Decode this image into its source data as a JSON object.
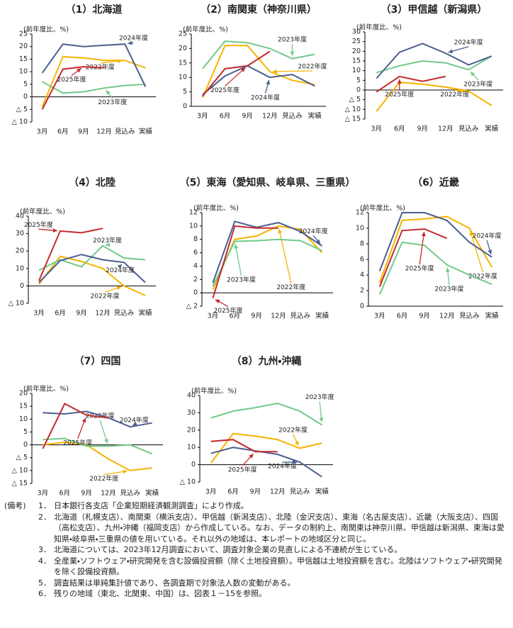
{
  "chart_data": [
    {
      "type": "line",
      "title": "（1）北海道",
      "y_label": "(前年度比、%)",
      "categories": [
        "3月",
        "6月",
        "9月",
        "12月",
        "見込み",
        "実績"
      ],
      "ylim": [
        -10,
        25
      ],
      "yticks": [
        {
          "value": -10,
          "label": "△ 10"
        },
        {
          "value": -5,
          "label": "△ 5"
        },
        0,
        5,
        10,
        15,
        20,
        25
      ],
      "series": [
        {
          "name": "2022年度",
          "color": "#f5b400",
          "values": [
            -4,
            16,
            15.5,
            14.5,
            14.5,
            11.5
          ]
        },
        {
          "name": "2023年度",
          "color": "#72c98a",
          "values": [
            6,
            1.5,
            2,
            3.5,
            4.5,
            5
          ]
        },
        {
          "name": "2024年度",
          "color": "#4b5f8f",
          "values": [
            9.5,
            21,
            20,
            20.5,
            21,
            4
          ]
        },
        {
          "name": "2025年度",
          "color": "#c32a2f",
          "values": [
            -5,
            11,
            12,
            11.5,
            null,
            null
          ]
        }
      ]
    },
    {
      "type": "line",
      "title": "（2）南関東（神奈川県）",
      "y_label": "(前年度比、%)",
      "categories": [
        "3月",
        "6月",
        "9月",
        "12月",
        "見込み",
        "実績"
      ],
      "ylim": [
        0,
        25
      ],
      "yticks": [
        0,
        5,
        10,
        15,
        20,
        25
      ],
      "series": [
        {
          "name": "2022年度",
          "color": "#f5b400",
          "values": [
            3,
            21,
            21,
            12,
            9,
            7.5
          ]
        },
        {
          "name": "2023年度",
          "color": "#72c98a",
          "values": [
            13,
            22.5,
            22,
            20,
            16.5,
            18
          ]
        },
        {
          "name": "2024年度",
          "color": "#4b5f8f",
          "values": [
            4,
            10.5,
            14,
            10,
            11,
            7
          ]
        },
        {
          "name": "2025年度",
          "color": "#c32a2f",
          "values": [
            3.5,
            13,
            14,
            19,
            null,
            null
          ]
        }
      ]
    },
    {
      "type": "line",
      "title": "（3）甲信越（新潟県）",
      "y_label": "(前年度比、%)",
      "categories": [
        "3月",
        "6月",
        "9月",
        "12月",
        "見込み",
        "実績"
      ],
      "ylim": [
        -15,
        30
      ],
      "yticks": [
        {
          "value": -15,
          "label": "△ 15"
        },
        {
          "value": -10,
          "label": "△ 10"
        },
        {
          "value": -5,
          "label": "△ 5"
        },
        0,
        5,
        10,
        15,
        20,
        25,
        30
      ],
      "series": [
        {
          "name": "2022年度",
          "color": "#f5b400",
          "values": [
            -11,
            4,
            3,
            1.5,
            -0.5,
            -8
          ]
        },
        {
          "name": "2023年度",
          "color": "#72c98a",
          "values": [
            9,
            12.5,
            15,
            14,
            10.5,
            17.5
          ]
        },
        {
          "name": "2024年度",
          "color": "#4b5f8f",
          "values": [
            6,
            19.5,
            24,
            19,
            13,
            17.5
          ]
        },
        {
          "name": "2025年度",
          "color": "#c32a2f",
          "values": [
            -1,
            7,
            4.5,
            7,
            null,
            null
          ]
        }
      ]
    },
    {
      "type": "line",
      "title": "（4）北陸",
      "y_label": "(前年度比、%)",
      "categories": [
        "3月",
        "6月",
        "9月",
        "12月",
        "見込み",
        "実績"
      ],
      "ylim": [
        -10,
        40
      ],
      "yticks": [
        {
          "value": -10,
          "label": "△ 10"
        },
        0,
        10,
        20,
        30,
        40
      ],
      "series": [
        {
          "name": "2022年度",
          "color": "#f5b400",
          "values": [
            1,
            17,
            14,
            10,
            0,
            -5.5
          ]
        },
        {
          "name": "2023年度",
          "color": "#72c98a",
          "values": [
            9,
            15,
            11,
            23,
            16,
            15
          ]
        },
        {
          "name": "2024年度",
          "color": "#4b5f8f",
          "values": [
            2,
            14.5,
            18,
            15,
            13.5,
            2
          ]
        },
        {
          "name": "2025年度",
          "color": "#c32a2f",
          "values": [
            3,
            31.5,
            30.5,
            33,
            null,
            null
          ]
        }
      ]
    },
    {
      "type": "line",
      "title": "（5）東海（愛知県、岐阜県、三重県）",
      "y_label": "(前年度比、%)",
      "categories": [
        "3月",
        "6月",
        "9月",
        "12月",
        "見込み",
        "実績"
      ],
      "ylim": [
        -2,
        12
      ],
      "yticks": [
        {
          "value": -2,
          "label": "△ 2"
        },
        0,
        2,
        4,
        6,
        8,
        10,
        12
      ],
      "series": [
        {
          "name": "2022年度",
          "color": "#f5b400",
          "values": [
            0.5,
            8,
            8.5,
            10,
            9.5,
            6
          ]
        },
        {
          "name": "2023年度",
          "color": "#72c98a",
          "values": [
            1,
            7.7,
            7.8,
            8,
            7.8,
            6.3
          ]
        },
        {
          "name": "2024年度",
          "color": "#4b5f8f",
          "values": [
            1.5,
            10.7,
            9.8,
            10.5,
            9.2,
            7
          ]
        },
        {
          "name": "2025年度",
          "color": "#c32a2f",
          "values": [
            -0.8,
            10,
            9.7,
            9.7,
            null,
            null
          ]
        }
      ]
    },
    {
      "type": "line",
      "title": "（6）近畿",
      "y_label": "(前年度比、%)",
      "categories": [
        "3月",
        "6月",
        "9月",
        "12月",
        "見込み",
        "実績"
      ],
      "ylim": [
        0,
        12
      ],
      "yticks": [
        0,
        2,
        4,
        6,
        8,
        10,
        12
      ],
      "series": [
        {
          "name": "2022年度",
          "color": "#f5b400",
          "values": [
            3,
            11,
            11.2,
            11.5,
            10,
            5
          ]
        },
        {
          "name": "2023年度",
          "color": "#72c98a",
          "values": [
            1.5,
            8.2,
            7.8,
            5.3,
            4,
            2.8
          ]
        },
        {
          "name": "2024年度",
          "color": "#4b5f8f",
          "values": [
            4.5,
            12,
            12,
            11,
            8.2,
            6.3
          ]
        },
        {
          "name": "2025年度",
          "color": "#c32a2f",
          "values": [
            2.5,
            9.7,
            9.9,
            8.7,
            null,
            null
          ]
        }
      ]
    },
    {
      "type": "line",
      "title": "（7）四国",
      "y_label": "(前年度比、%)",
      "categories": [
        "3月",
        "6月",
        "9月",
        "12月",
        "見込み",
        "実績"
      ],
      "ylim": [
        -15,
        20
      ],
      "yticks": [
        {
          "value": -15,
          "label": "△ 15"
        },
        {
          "value": -10,
          "label": "△ 10"
        },
        {
          "value": -5,
          "label": "△ 5"
        },
        0,
        5,
        10,
        15,
        20
      ],
      "series": [
        {
          "name": "2022年度",
          "color": "#f5b400",
          "values": [
            0,
            1,
            0,
            -5.5,
            -10,
            -9
          ]
        },
        {
          "name": "2023年度",
          "color": "#72c98a",
          "values": [
            2,
            2.5,
            -0.5,
            -0.5,
            0,
            -3.5
          ]
        },
        {
          "name": "2024年度",
          "color": "#4b5f8f",
          "values": [
            12.5,
            12,
            13,
            10.5,
            7,
            8.5
          ]
        },
        {
          "name": "2025年度",
          "color": "#c32a2f",
          "values": [
            -1.5,
            16,
            11.5,
            10.5,
            null,
            null
          ]
        }
      ]
    },
    {
      "type": "line",
      "title": "（8）九州・沖縄",
      "y_label": "(前年度比、%)",
      "categories": [
        "3月",
        "6月",
        "9月",
        "12月",
        "見込み",
        "実績"
      ],
      "ylim": [
        -10,
        40
      ],
      "yticks": [
        {
          "value": -10,
          "label": "△ 10"
        },
        0,
        10,
        20,
        30,
        40
      ],
      "series": [
        {
          "name": "2022年度",
          "color": "#f5b400",
          "values": [
            1,
            18,
            16.5,
            14.5,
            9.5,
            12.5
          ]
        },
        {
          "name": "2023年度",
          "color": "#72c98a",
          "values": [
            27,
            31,
            33,
            35.5,
            31,
            23
          ]
        },
        {
          "name": "2024年度",
          "color": "#4b5f8f",
          "values": [
            6.5,
            10,
            8,
            6,
            1.5,
            -7
          ]
        },
        {
          "name": "2025年度",
          "color": "#c32a2f",
          "values": [
            13.5,
            14.5,
            7.5,
            7.5,
            null,
            null
          ]
        }
      ]
    }
  ],
  "notes": {
    "label": "(備考)",
    "items": [
      {
        "number": "1．",
        "text": "日本銀行各支店「企業短期経済観測調査」により作成。"
      },
      {
        "number": "2．",
        "text": "北海道（札幌支店）、南関東（横浜支店）、甲信越（新潟支店）、北陸（金沢支店）、東海（名古屋支店）、近畿（大阪支店）、四国（高松支店）、九州・沖縄（福岡支店）から作成している。なお、データの制約上、南関東は神奈川県、甲信越は新潟県、東海は愛知県・岐阜県・三重県の値を用いている。それ以外の地域は、本レポートの地域区分と同じ。"
      },
      {
        "number": "3．",
        "text": "北海道については、2023年12月調査において、調査対象企業の見直しによる不連続が生じている。"
      },
      {
        "number": "4．",
        "text": "全産業・ソフトウェア・研究開発を含む設備投資額（除く土地投資額）。甲信越は土地投資額を含む。北陸はソフトウェア・研究開発を除く設備投資額。"
      },
      {
        "number": "5．",
        "text": "調査結果は単純集計値であり、各調査期で対象法人数の変動がある。"
      },
      {
        "number": "6．",
        "text": "残りの地域（東北、北関東、中国）は、図表１－15を参照。"
      }
    ]
  }
}
